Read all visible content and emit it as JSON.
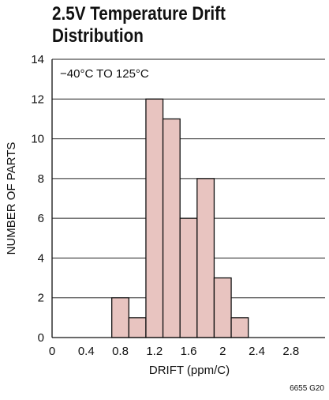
{
  "title": "2.5V Temperature Drift Distribution",
  "figure_code": "6655 G20",
  "chart_data": {
    "type": "histogram",
    "annotation": "−40°C TO 125°C",
    "xlabel": "DRIFT (ppm/C)",
    "ylabel": "NUMBER OF PARTS",
    "xlim": [
      0,
      3.2
    ],
    "ylim": [
      0,
      14
    ],
    "xticks": [
      0,
      0.4,
      0.8,
      1.2,
      1.6,
      2,
      2.4,
      2.8
    ],
    "xtick_labels": [
      "0",
      "0.4",
      "0.8",
      "1.2",
      "1.6",
      "2",
      "2.4",
      "2.8"
    ],
    "yticks": [
      0,
      2,
      4,
      6,
      8,
      10,
      12,
      14
    ],
    "ytick_labels": [
      "0",
      "2",
      "4",
      "6",
      "8",
      "10",
      "12",
      "14"
    ],
    "bins": [
      {
        "x0": 0.7,
        "x1": 0.9,
        "value": 2
      },
      {
        "x0": 0.9,
        "x1": 1.1,
        "value": 1
      },
      {
        "x0": 1.1,
        "x1": 1.3,
        "value": 12
      },
      {
        "x0": 1.3,
        "x1": 1.5,
        "value": 11
      },
      {
        "x0": 1.5,
        "x1": 1.7,
        "value": 6
      },
      {
        "x0": 1.7,
        "x1": 1.9,
        "value": 8
      },
      {
        "x0": 1.9,
        "x1": 2.1,
        "value": 3
      },
      {
        "x0": 2.1,
        "x1": 2.3,
        "value": 1
      }
    ],
    "grid": "horizontal",
    "bar_color": "#e8c4c0",
    "bar_edge_color": "#111111"
  }
}
